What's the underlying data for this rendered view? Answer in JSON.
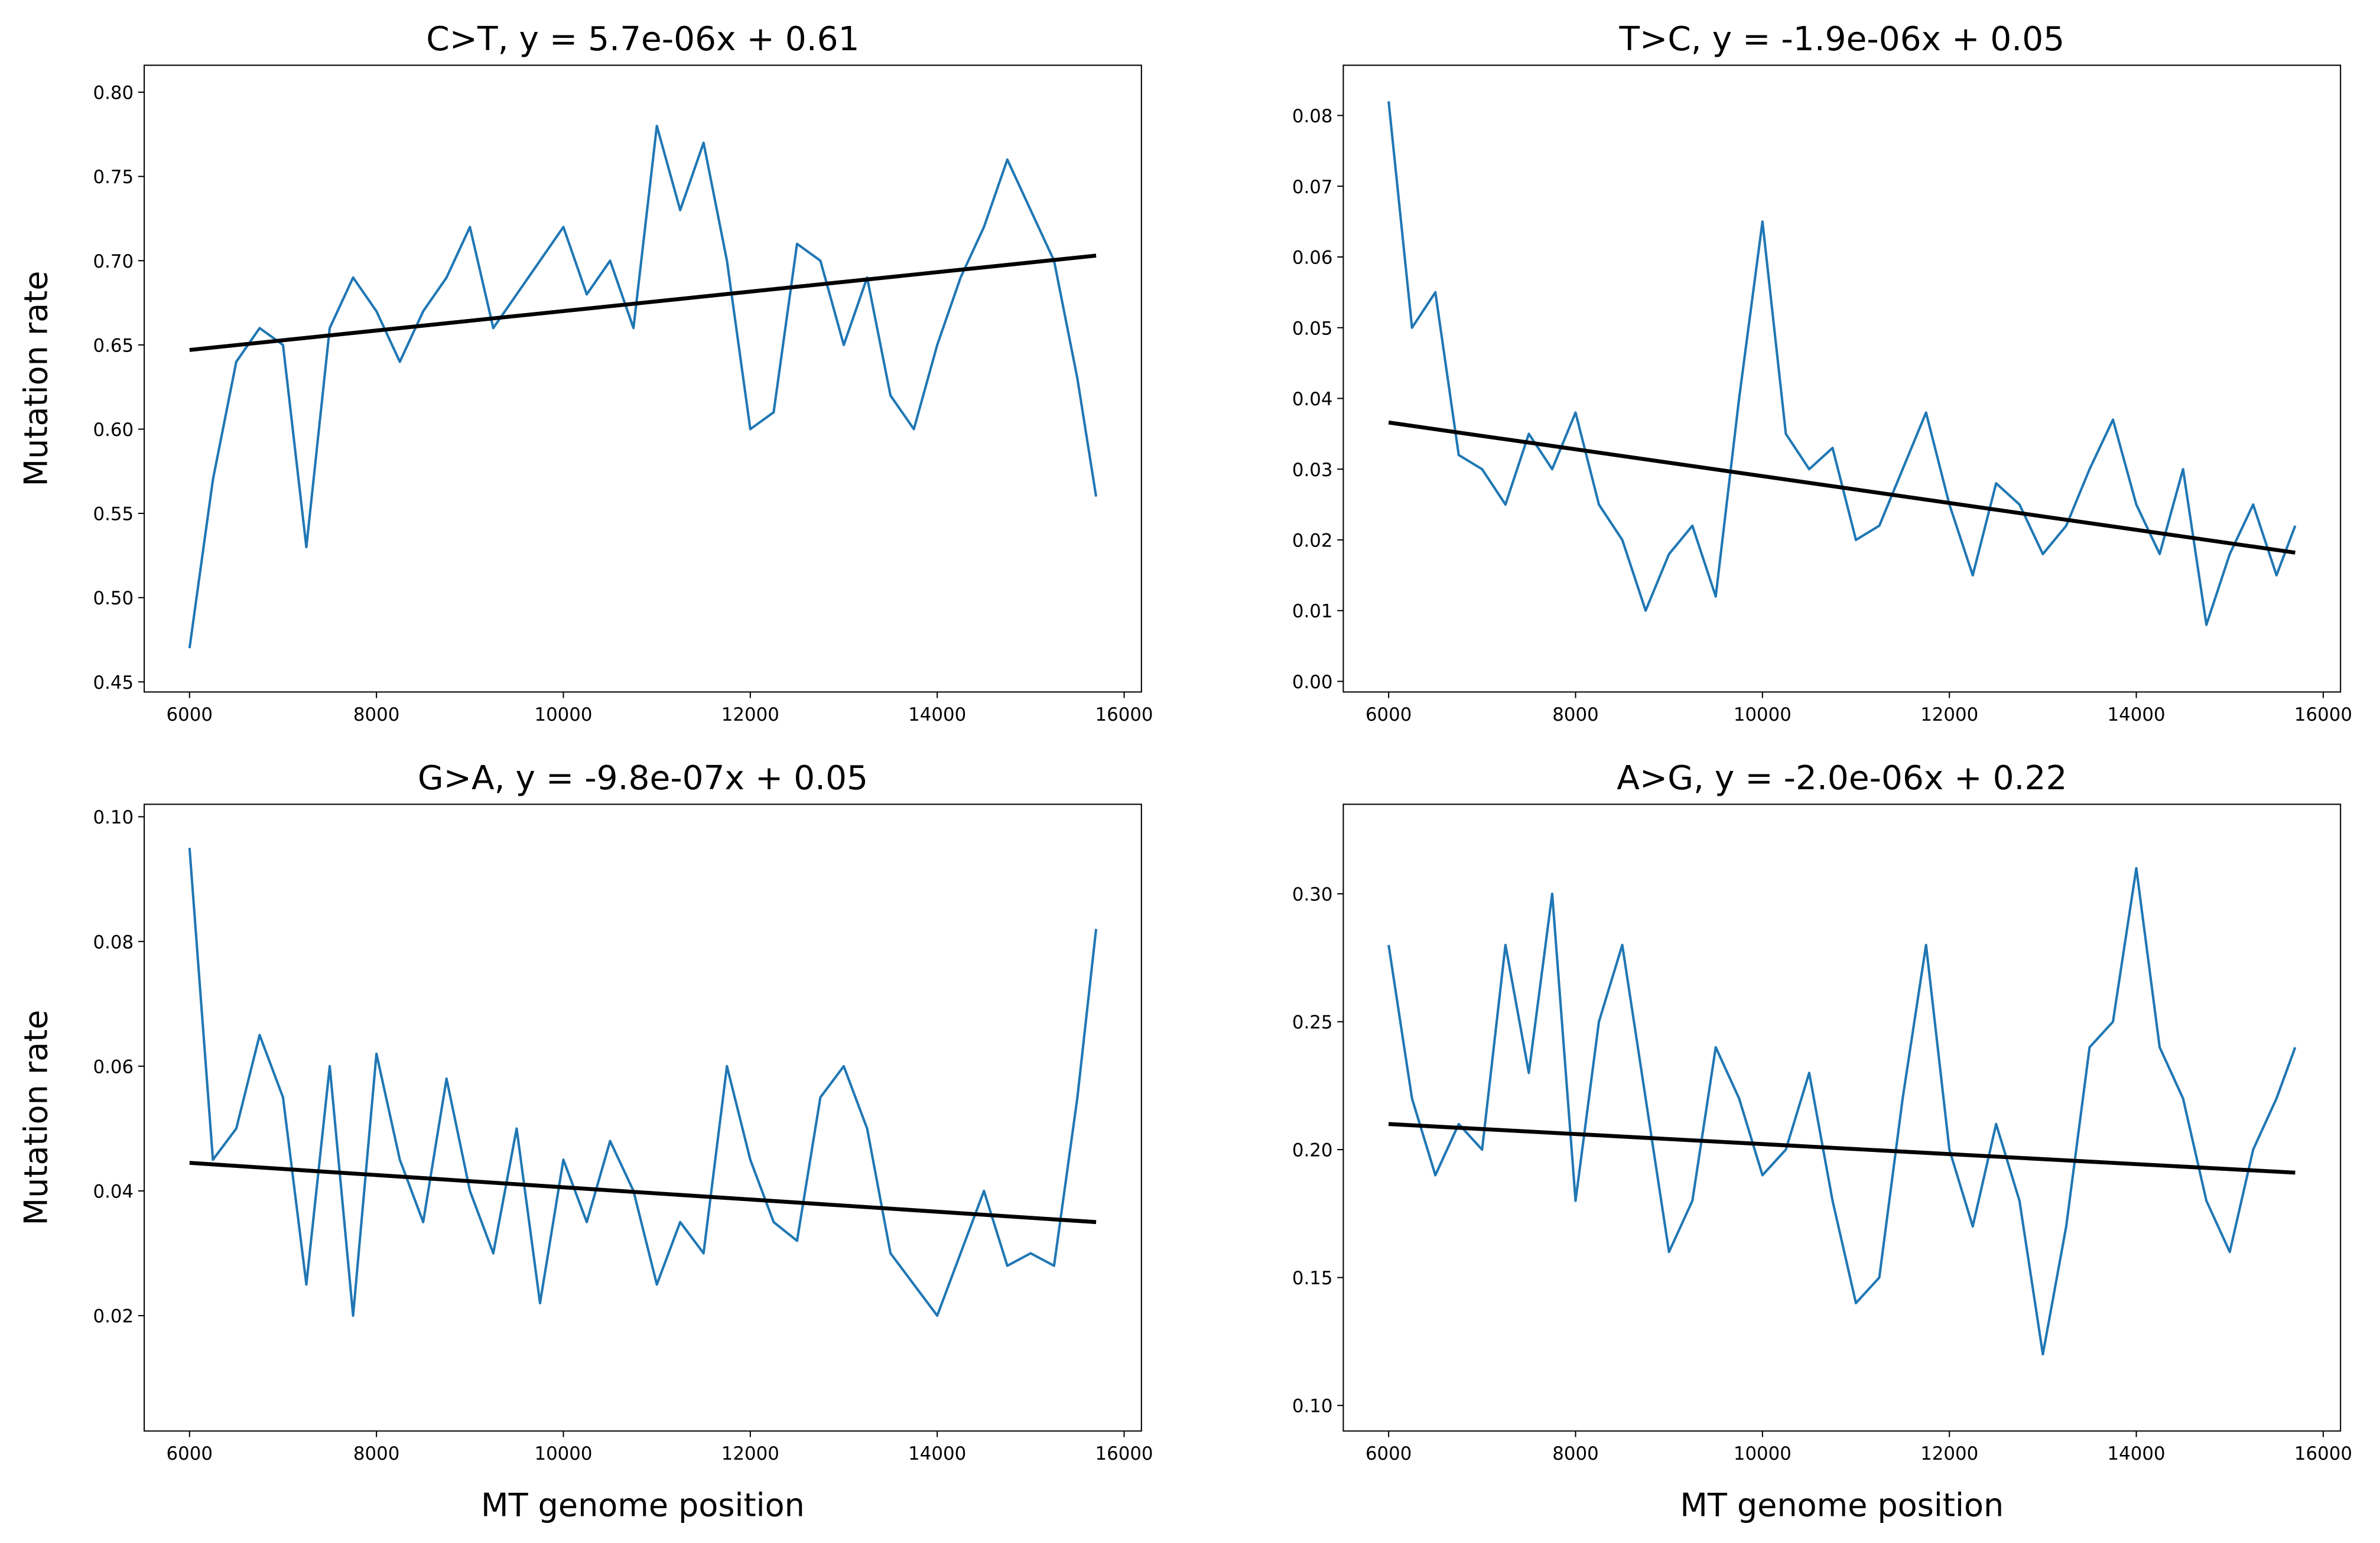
{
  "chart_data": [
    {
      "type": "line",
      "title": "C>T, y = 5.7e-06x + 0.61",
      "y_label": "Mutation rate",
      "x": [
        6000,
        6250,
        6500,
        6750,
        7000,
        7250,
        7500,
        7750,
        8000,
        8250,
        8500,
        8750,
        9000,
        9250,
        9500,
        9750,
        10000,
        10250,
        10500,
        10750,
        11000,
        11250,
        11500,
        11750,
        12000,
        12250,
        12500,
        12750,
        13000,
        13250,
        13500,
        13750,
        14000,
        14250,
        14500,
        14750,
        15000,
        15250,
        15500,
        15700
      ],
      "series": [
        {
          "color": "#1f77b4",
          "values": [
            0.47,
            0.57,
            0.64,
            0.66,
            0.65,
            0.53,
            0.66,
            0.69,
            0.67,
            0.64,
            0.67,
            0.69,
            0.72,
            0.66,
            0.68,
            0.7,
            0.72,
            0.68,
            0.7,
            0.66,
            0.78,
            0.73,
            0.77,
            0.7,
            0.6,
            0.61,
            0.71,
            0.7,
            0.65,
            0.69,
            0.62,
            0.6,
            0.65,
            0.69,
            0.72,
            0.76,
            0.73,
            0.7,
            0.63,
            0.56
          ]
        },
        {
          "color": "#000000",
          "x": [
            6000,
            15700
          ],
          "values": [
            0.647,
            0.703
          ]
        }
      ],
      "xlim": [
        5515,
        16185
      ],
      "xticks": [
        6000,
        8000,
        10000,
        12000,
        14000,
        16000
      ],
      "ylim": [
        0.444,
        0.816
      ],
      "yticks": [
        0.45,
        {
          "value": 0.5,
          "label": "0.50"
        },
        0.55,
        {
          "value": 0.6,
          "label": "0.60"
        },
        0.65,
        {
          "value": 0.7,
          "label": "0.70"
        },
        0.75,
        {
          "value": 0.8,
          "label": "0.80"
        }
      ]
    },
    {
      "type": "line",
      "title": "T>C, y = -1.9e-06x + 0.05",
      "x": [
        6000,
        6250,
        6500,
        6750,
        7000,
        7250,
        7500,
        7750,
        8000,
        8250,
        8500,
        8750,
        9000,
        9250,
        9500,
        9750,
        10000,
        10250,
        10500,
        10750,
        11000,
        11250,
        11500,
        11750,
        12000,
        12250,
        12500,
        12750,
        13000,
        13250,
        13500,
        13750,
        14000,
        14250,
        14500,
        14750,
        15000,
        15250,
        15500,
        15700
      ],
      "series": [
        {
          "color": "#1f77b4",
          "values": [
            0.082,
            0.05,
            0.055,
            0.032,
            0.03,
            0.025,
            0.035,
            0.03,
            0.038,
            0.025,
            0.02,
            0.01,
            0.018,
            0.022,
            0.012,
            0.04,
            0.065,
            0.035,
            0.03,
            0.033,
            0.02,
            0.022,
            0.03,
            0.038,
            0.025,
            0.015,
            0.028,
            0.025,
            0.018,
            0.022,
            0.03,
            0.037,
            0.025,
            0.018,
            0.03,
            0.008,
            0.018,
            0.025,
            0.015,
            0.022
          ]
        },
        {
          "color": "#000000",
          "x": [
            6000,
            15700
          ],
          "values": [
            0.0366,
            0.0182
          ]
        }
      ],
      "xlim": [
        5515,
        16185
      ],
      "xticks": [
        6000,
        8000,
        10000,
        12000,
        14000,
        16000
      ],
      "ylim": [
        -0.0015,
        0.0871
      ],
      "yticks": [
        {
          "value": 0,
          "label": "0.00"
        },
        0.01,
        0.02,
        0.03,
        0.04,
        0.05,
        0.06,
        0.07,
        0.08
      ]
    },
    {
      "type": "line",
      "title": "G>A, y = -9.8e-07x + 0.05",
      "y_label": "Mutation rate",
      "x_label": "MT genome position",
      "x": [
        6000,
        6250,
        6500,
        6750,
        7000,
        7250,
        7500,
        7750,
        8000,
        8250,
        8500,
        8750,
        9000,
        9250,
        9500,
        9750,
        10000,
        10250,
        10500,
        10750,
        11000,
        11250,
        11500,
        11750,
        12000,
        12250,
        12500,
        12750,
        13000,
        13250,
        13500,
        13750,
        14000,
        14250,
        14500,
        14750,
        15000,
        15250,
        15500,
        15700
      ],
      "series": [
        {
          "color": "#1f77b4",
          "values": [
            0.095,
            0.045,
            0.05,
            0.065,
            0.055,
            0.025,
            0.06,
            0.02,
            0.062,
            0.045,
            0.035,
            0.058,
            0.04,
            0.03,
            0.05,
            0.022,
            0.045,
            0.035,
            0.048,
            0.04,
            0.025,
            0.035,
            0.03,
            0.06,
            0.045,
            0.035,
            0.032,
            0.055,
            0.06,
            0.05,
            0.03,
            0.025,
            0.02,
            0.03,
            0.04,
            0.028,
            0.03,
            0.028,
            0.055,
            0.082
          ]
        },
        {
          "color": "#000000",
          "x": [
            6000,
            15700
          ],
          "values": [
            0.0445,
            0.035
          ]
        }
      ],
      "xlim": [
        5515,
        16185
      ],
      "xticks": [
        6000,
        8000,
        10000,
        12000,
        14000,
        16000
      ],
      "ylim": [
        0.0015,
        0.102
      ],
      "yticks": [
        0.02,
        0.04,
        0.06,
        0.08,
        {
          "value": 0.1,
          "label": "0.10"
        }
      ]
    },
    {
      "type": "line",
      "title": "A>G, y = -2.0e-06x + 0.22",
      "x_label": "MT genome position",
      "x": [
        6000,
        6250,
        6500,
        6750,
        7000,
        7250,
        7500,
        7750,
        8000,
        8250,
        8500,
        8750,
        9000,
        9250,
        9500,
        9750,
        10000,
        10250,
        10500,
        10750,
        11000,
        11250,
        11500,
        11750,
        12000,
        12250,
        12500,
        12750,
        13000,
        13250,
        13500,
        13750,
        14000,
        14250,
        14500,
        14750,
        15000,
        15250,
        15500,
        15700
      ],
      "series": [
        {
          "color": "#1f77b4",
          "values": [
            0.28,
            0.22,
            0.19,
            0.21,
            0.2,
            0.28,
            0.23,
            0.3,
            0.18,
            0.25,
            0.28,
            0.22,
            0.16,
            0.18,
            0.24,
            0.22,
            0.19,
            0.2,
            0.23,
            0.18,
            0.14,
            0.15,
            0.22,
            0.28,
            0.2,
            0.17,
            0.21,
            0.18,
            0.12,
            0.17,
            0.24,
            0.25,
            0.31,
            0.24,
            0.22,
            0.18,
            0.16,
            0.2,
            0.22,
            0.24
          ]
        },
        {
          "color": "#000000",
          "x": [
            6000,
            15700
          ],
          "values": [
            0.21,
            0.191
          ]
        }
      ],
      "xlim": [
        5515,
        16185
      ],
      "xticks": [
        6000,
        8000,
        10000,
        12000,
        14000,
        16000
      ],
      "ylim": [
        0.09,
        0.335
      ],
      "yticks": [
        {
          "value": 0.1,
          "label": "0.10"
        },
        0.15,
        {
          "value": 0.2,
          "label": "0.20"
        },
        0.25,
        {
          "value": 0.3,
          "label": "0.30"
        }
      ]
    }
  ]
}
